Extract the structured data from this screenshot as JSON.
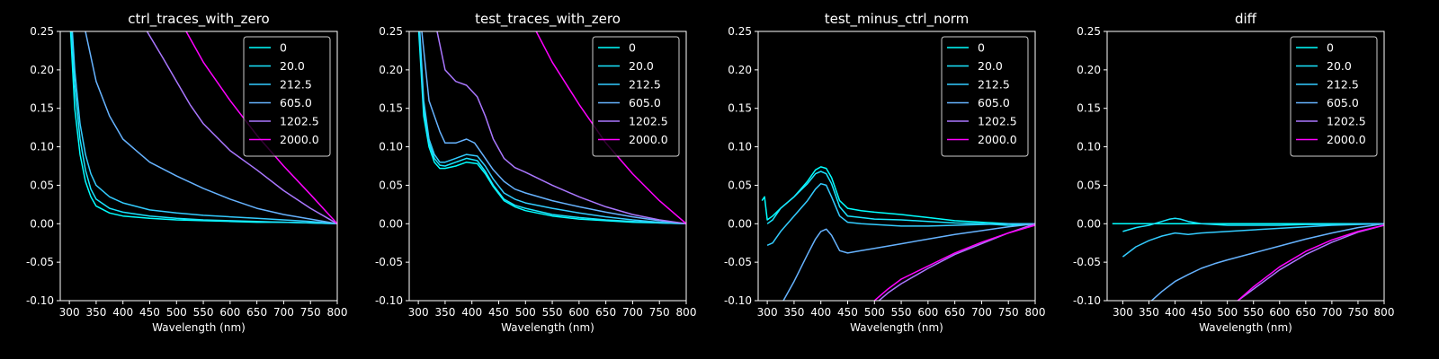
{
  "figure": {
    "background": "#000000",
    "foreground": "#ffffff"
  },
  "chart_data": [
    {
      "type": "line",
      "title": "ctrl_traces_with_zero",
      "xlabel": "Wavelength (nm)",
      "ylabel": "",
      "xlim": [
        283,
        800
      ],
      "ylim": [
        -0.1,
        0.25
      ],
      "xticks": [
        "300",
        "350",
        "400",
        "450",
        "500",
        "550",
        "600",
        "650",
        "700",
        "750",
        "800"
      ],
      "yticks": [
        "-0.10",
        "-0.05",
        "0.00",
        "0.05",
        "0.10",
        "0.15",
        "0.20",
        "0.25"
      ],
      "grid": false,
      "legend": "top-right",
      "series": [
        {
          "name": "0",
          "color": "#00ffff",
          "x": [
            300,
            310,
            320,
            330,
            340,
            350,
            375,
            400,
            450,
            500,
            550,
            600,
            650,
            700,
            750,
            800
          ],
          "y": [
            0.28,
            0.15,
            0.09,
            0.055,
            0.035,
            0.023,
            0.014,
            0.01,
            0.007,
            0.005,
            0.004,
            0.003,
            0.002,
            0.002,
            0.001,
            0.0
          ]
        },
        {
          "name": "20.0",
          "color": "#1ae5ff",
          "x": [
            302,
            310,
            320,
            330,
            340,
            350,
            375,
            400,
            450,
            500,
            550,
            600,
            650,
            700,
            750,
            800
          ],
          "y": [
            0.28,
            0.18,
            0.11,
            0.07,
            0.045,
            0.032,
            0.02,
            0.015,
            0.01,
            0.007,
            0.005,
            0.004,
            0.003,
            0.002,
            0.001,
            0.0
          ]
        },
        {
          "name": "212.5",
          "color": "#33ccff",
          "x": [
            303,
            310,
            320,
            330,
            340,
            350,
            375,
            400,
            450,
            500,
            550,
            600,
            650,
            700,
            750,
            800
          ],
          "y": [
            0.28,
            0.2,
            0.13,
            0.09,
            0.065,
            0.05,
            0.035,
            0.027,
            0.018,
            0.014,
            0.011,
            0.009,
            0.007,
            0.005,
            0.003,
            0.0
          ]
        },
        {
          "name": "605.0",
          "color": "#66b3ff",
          "x": [
            330,
            350,
            375,
            400,
            425,
            450,
            500,
            550,
            600,
            650,
            700,
            750,
            800
          ],
          "y": [
            0.25,
            0.185,
            0.14,
            0.11,
            0.095,
            0.08,
            0.062,
            0.046,
            0.032,
            0.02,
            0.012,
            0.006,
            0.0
          ]
        },
        {
          "name": "1202.5",
          "color": "#aa77ff",
          "x": [
            445,
            475,
            500,
            525,
            550,
            600,
            650,
            700,
            750,
            800
          ],
          "y": [
            0.25,
            0.215,
            0.185,
            0.155,
            0.13,
            0.095,
            0.07,
            0.043,
            0.02,
            0.0
          ]
        },
        {
          "name": "2000.0",
          "color": "#ff00ff",
          "x": [
            518,
            550,
            600,
            650,
            700,
            750,
            800
          ],
          "y": [
            0.25,
            0.21,
            0.16,
            0.115,
            0.075,
            0.038,
            0.0
          ]
        }
      ]
    },
    {
      "type": "line",
      "title": "test_traces_with_zero",
      "xlabel": "Wavelength (nm)",
      "ylabel": "",
      "xlim": [
        283,
        800
      ],
      "ylim": [
        -0.1,
        0.25
      ],
      "xticks": [
        "300",
        "350",
        "400",
        "450",
        "500",
        "550",
        "600",
        "650",
        "700",
        "750",
        "800"
      ],
      "yticks": [
        "-0.10",
        "-0.05",
        "0.00",
        "0.05",
        "0.10",
        "0.15",
        "0.20",
        "0.25"
      ],
      "grid": false,
      "legend": "top-right",
      "series": [
        {
          "name": "0",
          "color": "#00ffff",
          "x": [
            300,
            310,
            320,
            330,
            340,
            350,
            370,
            390,
            410,
            425,
            440,
            460,
            480,
            500,
            550,
            600,
            650,
            700,
            750,
            800
          ],
          "y": [
            0.26,
            0.14,
            0.1,
            0.08,
            0.072,
            0.072,
            0.075,
            0.08,
            0.078,
            0.065,
            0.048,
            0.03,
            0.022,
            0.017,
            0.01,
            0.006,
            0.004,
            0.002,
            0.001,
            0.0
          ]
        },
        {
          "name": "20.0",
          "color": "#1ae5ff",
          "x": [
            301,
            310,
            320,
            330,
            340,
            350,
            370,
            390,
            410,
            425,
            440,
            460,
            480,
            500,
            550,
            600,
            650,
            700,
            750,
            800
          ],
          "y": [
            0.26,
            0.15,
            0.105,
            0.085,
            0.076,
            0.075,
            0.08,
            0.085,
            0.082,
            0.068,
            0.05,
            0.032,
            0.024,
            0.02,
            0.012,
            0.008,
            0.005,
            0.003,
            0.001,
            0.0
          ]
        },
        {
          "name": "212.5",
          "color": "#33ccff",
          "x": [
            302,
            310,
            320,
            330,
            340,
            350,
            370,
            390,
            410,
            425,
            440,
            460,
            480,
            500,
            550,
            600,
            650,
            700,
            750,
            800
          ],
          "y": [
            0.26,
            0.16,
            0.11,
            0.09,
            0.08,
            0.08,
            0.085,
            0.09,
            0.088,
            0.075,
            0.058,
            0.04,
            0.032,
            0.027,
            0.02,
            0.014,
            0.009,
            0.005,
            0.002,
            0.0
          ]
        },
        {
          "name": "605.0",
          "color": "#66b3ff",
          "x": [
            305,
            320,
            340,
            350,
            370,
            390,
            405,
            420,
            440,
            460,
            480,
            500,
            550,
            600,
            650,
            700,
            750,
            800
          ],
          "y": [
            0.26,
            0.16,
            0.12,
            0.105,
            0.105,
            0.11,
            0.105,
            0.09,
            0.07,
            0.055,
            0.045,
            0.04,
            0.03,
            0.022,
            0.015,
            0.009,
            0.004,
            0.0
          ]
        },
        {
          "name": "1202.5",
          "color": "#aa77ff",
          "x": [
            335,
            350,
            370,
            390,
            410,
            425,
            440,
            460,
            480,
            500,
            550,
            600,
            650,
            700,
            750,
            800
          ],
          "y": [
            0.25,
            0.2,
            0.185,
            0.18,
            0.165,
            0.14,
            0.11,
            0.085,
            0.073,
            0.067,
            0.05,
            0.035,
            0.022,
            0.012,
            0.005,
            0.0
          ]
        },
        {
          "name": "2000.0",
          "color": "#ff00ff",
          "x": [
            520,
            550,
            600,
            650,
            700,
            750,
            800
          ],
          "y": [
            0.25,
            0.21,
            0.155,
            0.105,
            0.065,
            0.03,
            0.0
          ]
        }
      ]
    },
    {
      "type": "line",
      "title": "test_minus_ctrl_norm",
      "xlabel": "Wavelength (nm)",
      "ylabel": "",
      "xlim": [
        283,
        800
      ],
      "ylim": [
        -0.1,
        0.25
      ],
      "xticks": [
        "300",
        "350",
        "400",
        "450",
        "500",
        "550",
        "600",
        "650",
        "700",
        "750",
        "800"
      ],
      "yticks": [
        "-0.10",
        "-0.05",
        "0.00",
        "0.05",
        "0.10",
        "0.15",
        "0.20",
        "0.25"
      ],
      "grid": false,
      "legend": "top-right",
      "series": [
        {
          "name": "0",
          "color": "#00ffff",
          "x": [
            290,
            295,
            300,
            310,
            325,
            350,
            375,
            390,
            400,
            410,
            420,
            435,
            450,
            475,
            500,
            550,
            600,
            650,
            700,
            750,
            800
          ],
          "y": [
            0.03,
            0.035,
            0.005,
            0.01,
            0.02,
            0.035,
            0.055,
            0.07,
            0.074,
            0.072,
            0.06,
            0.03,
            0.02,
            0.017,
            0.015,
            0.012,
            0.008,
            0.004,
            0.002,
            0.0,
            0.0
          ]
        },
        {
          "name": "20.0",
          "color": "#1ae5ff",
          "x": [
            300,
            310,
            325,
            350,
            375,
            390,
            400,
            410,
            420,
            435,
            450,
            475,
            500,
            550,
            600,
            650,
            700,
            750,
            800
          ],
          "y": [
            0.0,
            0.005,
            0.02,
            0.035,
            0.052,
            0.065,
            0.068,
            0.065,
            0.052,
            0.022,
            0.01,
            0.008,
            0.006,
            0.005,
            0.003,
            0.001,
            0.0,
            -0.002,
            0.0
          ]
        },
        {
          "name": "212.5",
          "color": "#33ccff",
          "x": [
            300,
            310,
            325,
            350,
            375,
            390,
            400,
            410,
            420,
            435,
            450,
            475,
            500,
            550,
            600,
            650,
            700,
            750,
            800
          ],
          "y": [
            -0.028,
            -0.025,
            -0.01,
            0.01,
            0.03,
            0.045,
            0.052,
            0.05,
            0.035,
            0.01,
            0.002,
            0.0,
            -0.001,
            -0.003,
            -0.003,
            -0.002,
            -0.001,
            0.0,
            0.0
          ]
        },
        {
          "name": "605.0",
          "color": "#66b3ff",
          "x": [
            330,
            350,
            375,
            390,
            400,
            410,
            420,
            435,
            450,
            475,
            500,
            550,
            600,
            650,
            700,
            750,
            800
          ],
          "y": [
            -0.1,
            -0.075,
            -0.04,
            -0.02,
            -0.01,
            -0.007,
            -0.015,
            -0.035,
            -0.038,
            -0.035,
            -0.032,
            -0.026,
            -0.02,
            -0.014,
            -0.009,
            -0.004,
            0.0
          ]
        },
        {
          "name": "1202.5",
          "color": "#aa77ff",
          "x": [
            500,
            525,
            550,
            600,
            650,
            700,
            750,
            800
          ],
          "y": [
            -0.105,
            -0.09,
            -0.078,
            -0.058,
            -0.04,
            -0.026,
            -0.012,
            0.0
          ]
        },
        {
          "name": "2000.0",
          "color": "#ff00ff",
          "x": [
            500,
            525,
            550,
            600,
            650,
            700,
            750,
            800
          ],
          "y": [
            -0.1,
            -0.085,
            -0.072,
            -0.055,
            -0.038,
            -0.024,
            -0.012,
            -0.002
          ]
        }
      ]
    },
    {
      "type": "line",
      "title": "diff",
      "xlabel": "Wavelength (nm)",
      "ylabel": "",
      "xlim": [
        270,
        800
      ],
      "ylim": [
        -0.1,
        0.25
      ],
      "xticks": [
        "300",
        "350",
        "400",
        "450",
        "500",
        "550",
        "600",
        "650",
        "700",
        "750",
        "800"
      ],
      "yticks": [
        "-0.10",
        "-0.05",
        "0.00",
        "0.05",
        "0.10",
        "0.15",
        "0.20",
        "0.25"
      ],
      "grid": false,
      "legend": "top-right",
      "series": [
        {
          "name": "0",
          "color": "#00ffff",
          "x": [
            280,
            800
          ],
          "y": [
            0.0,
            0.0
          ]
        },
        {
          "name": "20.0",
          "color": "#1ae5ff",
          "x": [
            300,
            325,
            350,
            375,
            390,
            400,
            410,
            425,
            450,
            500,
            550,
            600,
            650,
            700,
            750,
            800
          ],
          "y": [
            -0.01,
            -0.005,
            -0.002,
            0.003,
            0.006,
            0.007,
            0.006,
            0.003,
            0.0,
            -0.002,
            -0.002,
            -0.002,
            -0.001,
            -0.001,
            0.0,
            0.0
          ]
        },
        {
          "name": "212.5",
          "color": "#33ccff",
          "x": [
            300,
            325,
            350,
            375,
            400,
            425,
            450,
            500,
            550,
            600,
            650,
            700,
            750,
            800
          ],
          "y": [
            -0.043,
            -0.03,
            -0.022,
            -0.016,
            -0.012,
            -0.014,
            -0.012,
            -0.01,
            -0.008,
            -0.006,
            -0.004,
            -0.002,
            -0.001,
            0.0
          ]
        },
        {
          "name": "605.0",
          "color": "#66b3ff",
          "x": [
            355,
            375,
            400,
            425,
            450,
            475,
            500,
            550,
            600,
            650,
            700,
            750,
            800
          ],
          "y": [
            -0.1,
            -0.088,
            -0.075,
            -0.066,
            -0.058,
            -0.052,
            -0.047,
            -0.038,
            -0.029,
            -0.02,
            -0.012,
            -0.005,
            0.0
          ]
        },
        {
          "name": "1202.5",
          "color": "#aa77ff",
          "x": [
            520,
            550,
            600,
            650,
            700,
            750,
            800
          ],
          "y": [
            -0.1,
            -0.085,
            -0.06,
            -0.04,
            -0.024,
            -0.011,
            -0.002
          ]
        },
        {
          "name": "2000.0",
          "color": "#ff00ff",
          "x": [
            520,
            550,
            600,
            650,
            700,
            750,
            800
          ],
          "y": [
            -0.1,
            -0.082,
            -0.056,
            -0.036,
            -0.021,
            -0.01,
            -0.002
          ]
        }
      ]
    }
  ]
}
